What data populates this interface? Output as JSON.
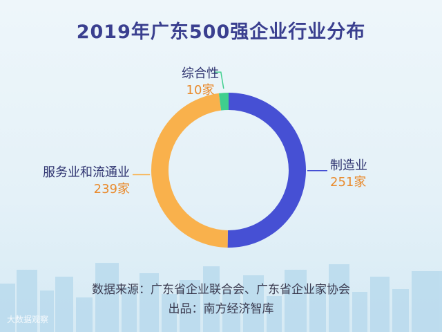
{
  "chart_data": {
    "type": "pie",
    "title": "2019年广东500强企业行业分布",
    "categories": [
      "制造业",
      "服务业和流通业",
      "综合性"
    ],
    "values": [
      251,
      239,
      10
    ],
    "value_labels": [
      "251家",
      "239家",
      "10家"
    ],
    "colors": [
      "#4650d4",
      "#f9b14c",
      "#3fcf8e"
    ],
    "donut": true,
    "legend": "none"
  },
  "colors": {
    "title": "#3a3f8f",
    "label": "#2f3470",
    "value": "#e98a2c"
  },
  "footer": {
    "source": "数据来源：广东省企业联合会、广东省企业家协会",
    "producer": "出品：南方经济智库"
  },
  "watermark": "大数据观察"
}
